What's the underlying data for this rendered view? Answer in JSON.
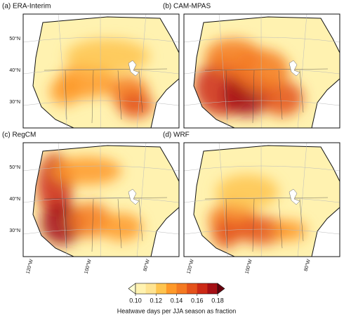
{
  "panels": [
    {
      "title": "(a) ERA-Interim"
    },
    {
      "title": "(b) CAM-MPAS"
    },
    {
      "title": "(c) RegCM"
    },
    {
      "title": "(d) WRF"
    }
  ],
  "lat_labels": [
    "50°N",
    "40°N",
    "30°N"
  ],
  "lon_labels": [
    "120°W",
    "100°W",
    "80°W"
  ],
  "colorbar": {
    "lim": [
      0.1,
      0.18
    ],
    "ticks": [
      {
        "value": 0.1,
        "label": "0.10"
      },
      0.12,
      0.14,
      0.16,
      0.18
    ],
    "label": "Heatwave days  per JJA season as fraction",
    "colors": [
      "#ffffd4",
      "#fff2b0",
      "#fee391",
      "#fec44f",
      "#fe9929",
      "#f47a22",
      "#e4521b",
      "#cc2a16",
      "#a50f15",
      "#67000d"
    ]
  }
}
